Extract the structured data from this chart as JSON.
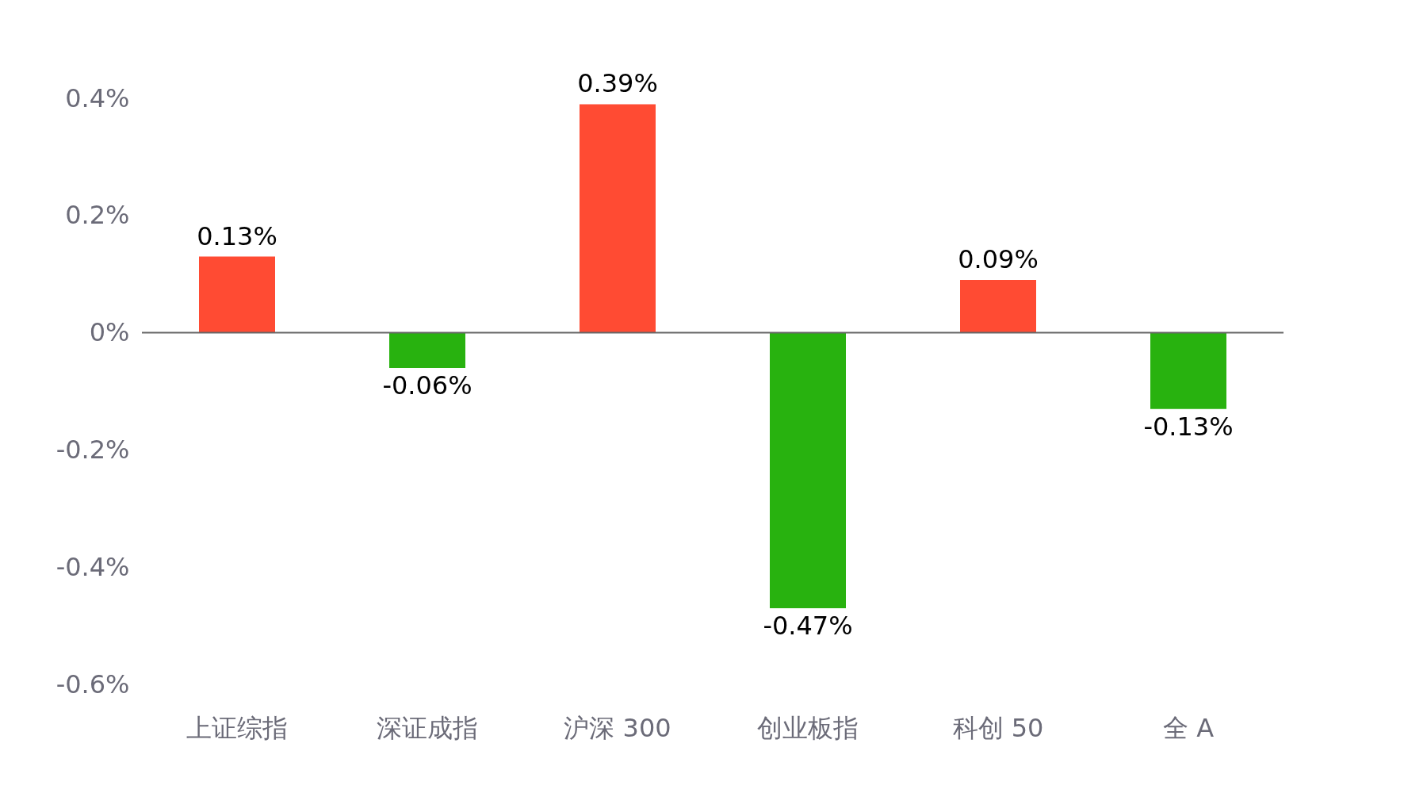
{
  "chart_data": {
    "type": "bar",
    "categories": [
      "上证综指",
      "深证成指",
      "沪深 300",
      "创业板指",
      "科创 50",
      "全 A"
    ],
    "values": [
      0.13,
      -0.06,
      0.39,
      -0.47,
      0.09,
      -0.13
    ],
    "colors": [
      "#ff4b33",
      "#28b20f",
      "#ff4b33",
      "#28b20f",
      "#ff4b33",
      "#28b20f"
    ],
    "value_labels": [
      "0.13%",
      "-0.06%",
      "0.39%",
      "-0.47%",
      "0.09%",
      "-0.13%"
    ],
    "ylim": [
      -0.6,
      0.4
    ],
    "yticks": [
      {
        "value": -0.6,
        "label": "-0.6%"
      },
      {
        "value": -0.4,
        "label": "-0.4%"
      },
      {
        "value": -0.2,
        "label": "-0.2%"
      },
      {
        "value": 0,
        "label": "0%"
      },
      {
        "value": 0.2,
        "label": "0.2%"
      },
      {
        "value": 0.4,
        "label": "0.4%"
      }
    ],
    "ref_lines": [
      {
        "axis": "y",
        "value": 0,
        "color": "#666666"
      }
    ],
    "grid": false
  }
}
